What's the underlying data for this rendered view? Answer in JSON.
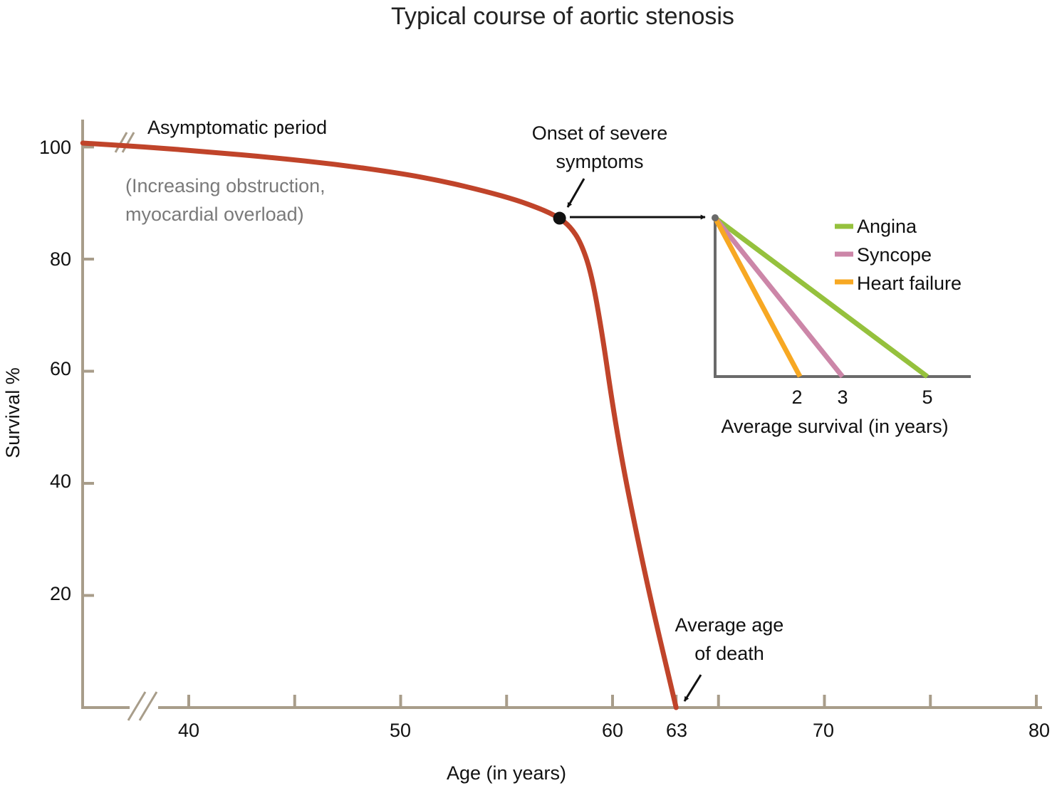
{
  "chart_data": [
    {
      "type": "line",
      "title": "Typical course of aortic stenosis",
      "xlabel": "Age (in years)",
      "ylabel": "Survival %",
      "xlim": [
        35,
        80
      ],
      "ylim": [
        0,
        105
      ],
      "x_tick_labels": [
        "40",
        "50",
        "60",
        "63",
        "70",
        "80"
      ],
      "y_tick_labels": [
        "100",
        "80",
        "60",
        "40",
        "20"
      ],
      "x_ticks": [
        40,
        45,
        50,
        55,
        60,
        63,
        65,
        70,
        75,
        80
      ],
      "y_ticks": [
        100,
        80,
        60,
        40,
        20
      ],
      "series": [
        {
          "color": "#c0442a",
          "x": [
            35,
            38,
            41,
            44,
            47,
            50,
            52,
            54,
            55.5,
            56.5,
            57,
            57.5,
            58,
            58.5,
            59,
            59.5,
            60,
            60.5,
            61,
            61.5,
            62,
            62.5,
            63
          ],
          "y": [
            100.7,
            100.0,
            99.1,
            98.1,
            96.9,
            95.3,
            93.9,
            92.1,
            90.5,
            89.1,
            88.3,
            87.3,
            85.8,
            83.0,
            77.5,
            67.0,
            54.0,
            43.0,
            33.5,
            24.5,
            16.0,
            8.0,
            0
          ]
        }
      ],
      "onset_point": {
        "x": 57.5,
        "y": 87.3
      },
      "annotations": {
        "asymptomatic": "Asymptomatic period",
        "obstruction_line1": "(Increasing obstruction,",
        "obstruction_line2": "myocardial overload)",
        "onset_line1": "Onset of severe",
        "onset_line2": "symptoms",
        "death_line1": "Average age",
        "death_line2": "of death"
      },
      "colors": {
        "axis": "#a89d8a",
        "curve": "#c0442a",
        "arrow": "#111111"
      }
    },
    {
      "type": "line",
      "xlabel": "Average survival (in years)",
      "x_tick_labels": [
        "2",
        "3",
        "5"
      ],
      "x_ticks": [
        2,
        3,
        5
      ],
      "xlim": [
        0,
        6
      ],
      "ylim": [
        0,
        1
      ],
      "legend_placement": "top-right",
      "series": [
        {
          "name": "Angina",
          "color": "#95c13d",
          "x": [
            0,
            5
          ],
          "y": [
            1,
            0
          ]
        },
        {
          "name": "Syncope",
          "color": "#cc86a8",
          "x": [
            0,
            3
          ],
          "y": [
            1,
            0
          ]
        },
        {
          "name": "Heart failure",
          "color": "#f7a823",
          "x": [
            0,
            2
          ],
          "y": [
            1,
            0
          ]
        }
      ],
      "colors": {
        "axis": "#6a6a6a",
        "origin_dot": "#6a6a6a"
      }
    }
  ]
}
